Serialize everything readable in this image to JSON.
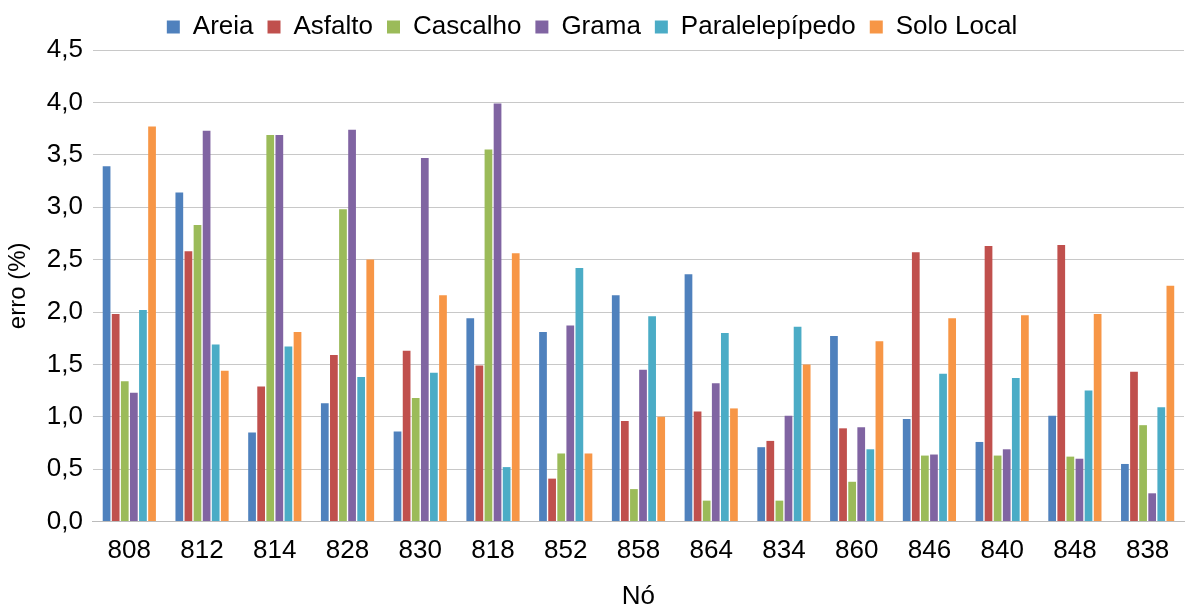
{
  "chart_data": {
    "type": "bar",
    "xlabel": "Nó",
    "ylabel": "erro (%)",
    "categories": [
      "808",
      "812",
      "814",
      "828",
      "830",
      "818",
      "852",
      "858",
      "864",
      "834",
      "860",
      "846",
      "840",
      "848",
      "838"
    ],
    "series": [
      {
        "name": "Areia",
        "color": "#4f81bd",
        "values": [
          3.39,
          3.14,
          0.85,
          1.13,
          0.86,
          1.94,
          1.81,
          2.16,
          2.36,
          0.71,
          1.77,
          0.98,
          0.76,
          1.01,
          0.55
        ]
      },
      {
        "name": "Asfalto",
        "color": "#c0504d",
        "values": [
          1.98,
          2.58,
          1.29,
          1.59,
          1.63,
          1.49,
          0.41,
          0.96,
          1.05,
          0.77,
          0.89,
          2.57,
          2.63,
          2.64,
          1.43
        ]
      },
      {
        "name": "Cascalho",
        "color": "#9bbb59",
        "values": [
          1.34,
          2.83,
          3.69,
          2.98,
          1.18,
          3.55,
          0.65,
          0.31,
          0.2,
          0.2,
          0.38,
          0.63,
          0.63,
          0.62,
          0.92
        ]
      },
      {
        "name": "Grama",
        "color": "#8064a2",
        "values": [
          1.23,
          3.73,
          3.69,
          3.74,
          3.47,
          3.99,
          1.87,
          1.45,
          1.32,
          1.01,
          0.9,
          0.64,
          0.69,
          0.6,
          0.27
        ]
      },
      {
        "name": "Paralelepípedo",
        "color": "#4bacc6",
        "values": [
          2.02,
          1.69,
          1.67,
          1.38,
          1.42,
          0.52,
          2.42,
          1.96,
          1.8,
          1.86,
          0.69,
          1.41,
          1.37,
          1.25,
          1.09
        ]
      },
      {
        "name": "Solo Local",
        "color": "#f79646",
        "values": [
          3.77,
          1.44,
          1.81,
          2.5,
          2.16,
          2.56,
          0.65,
          1.0,
          1.08,
          1.5,
          1.72,
          1.94,
          1.97,
          1.98,
          2.25
        ]
      }
    ],
    "ylim": [
      0,
      4.5
    ],
    "yticks": [
      {
        "value": 0,
        "label": "0,0"
      },
      {
        "value": 0.5,
        "label": "0,5"
      },
      {
        "value": 1,
        "label": "1,0"
      },
      {
        "value": 1.5,
        "label": "1,5"
      },
      {
        "value": 2,
        "label": "2,0"
      },
      {
        "value": 2.5,
        "label": "2,5"
      },
      {
        "value": 3,
        "label": "3,0"
      },
      {
        "value": 3.5,
        "label": "3,5"
      },
      {
        "value": 4,
        "label": "4,0"
      },
      {
        "value": 4.5,
        "label": "4,5"
      }
    ],
    "grid": "y",
    "legend": "top"
  }
}
